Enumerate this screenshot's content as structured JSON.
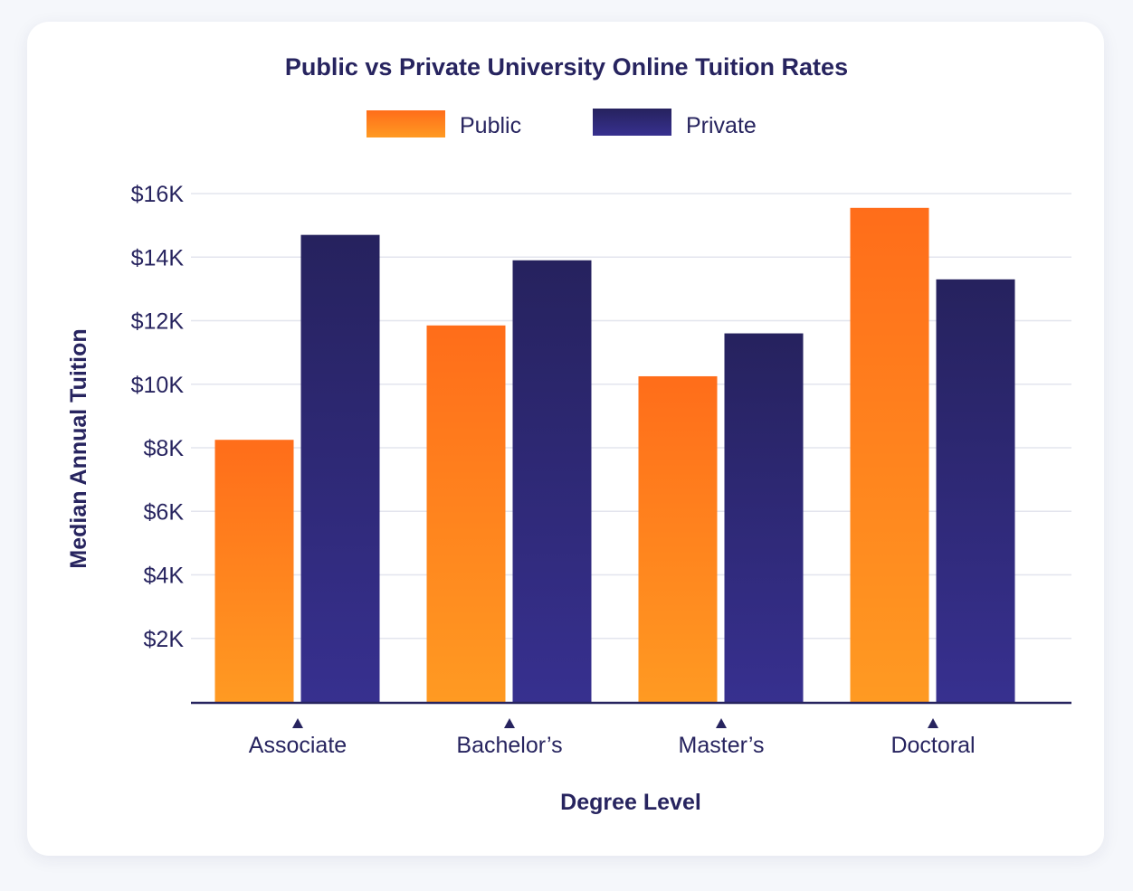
{
  "chart_data": {
    "type": "bar",
    "title": "Public vs Private University Online Tuition Rates",
    "xlabel": "Degree Level",
    "ylabel": "Median Annual Tuition",
    "categories": [
      "Associate",
      "Bachelor’s",
      "Master’s",
      "Doctoral"
    ],
    "series": [
      {
        "name": "Public",
        "values": [
          8250,
          11850,
          10250,
          15550
        ],
        "color": "#ff7a1a"
      },
      {
        "name": "Private",
        "values": [
          14700,
          13900,
          11600,
          13300
        ],
        "color": "#2f2b7a"
      }
    ],
    "ylim": [
      0,
      16000
    ],
    "yticks": [
      {
        "value": 2000,
        "label": "$2K"
      },
      {
        "value": 4000,
        "label": "$4K"
      },
      {
        "value": 6000,
        "label": "$6K"
      },
      {
        "value": 8000,
        "label": "$8K"
      },
      {
        "value": 10000,
        "label": "$10K"
      },
      {
        "value": 12000,
        "label": "$12K"
      },
      {
        "value": 14000,
        "label": "$14K"
      },
      {
        "value": 16000,
        "label": "$16K"
      }
    ],
    "grid": true,
    "legend_position": "top-center"
  }
}
